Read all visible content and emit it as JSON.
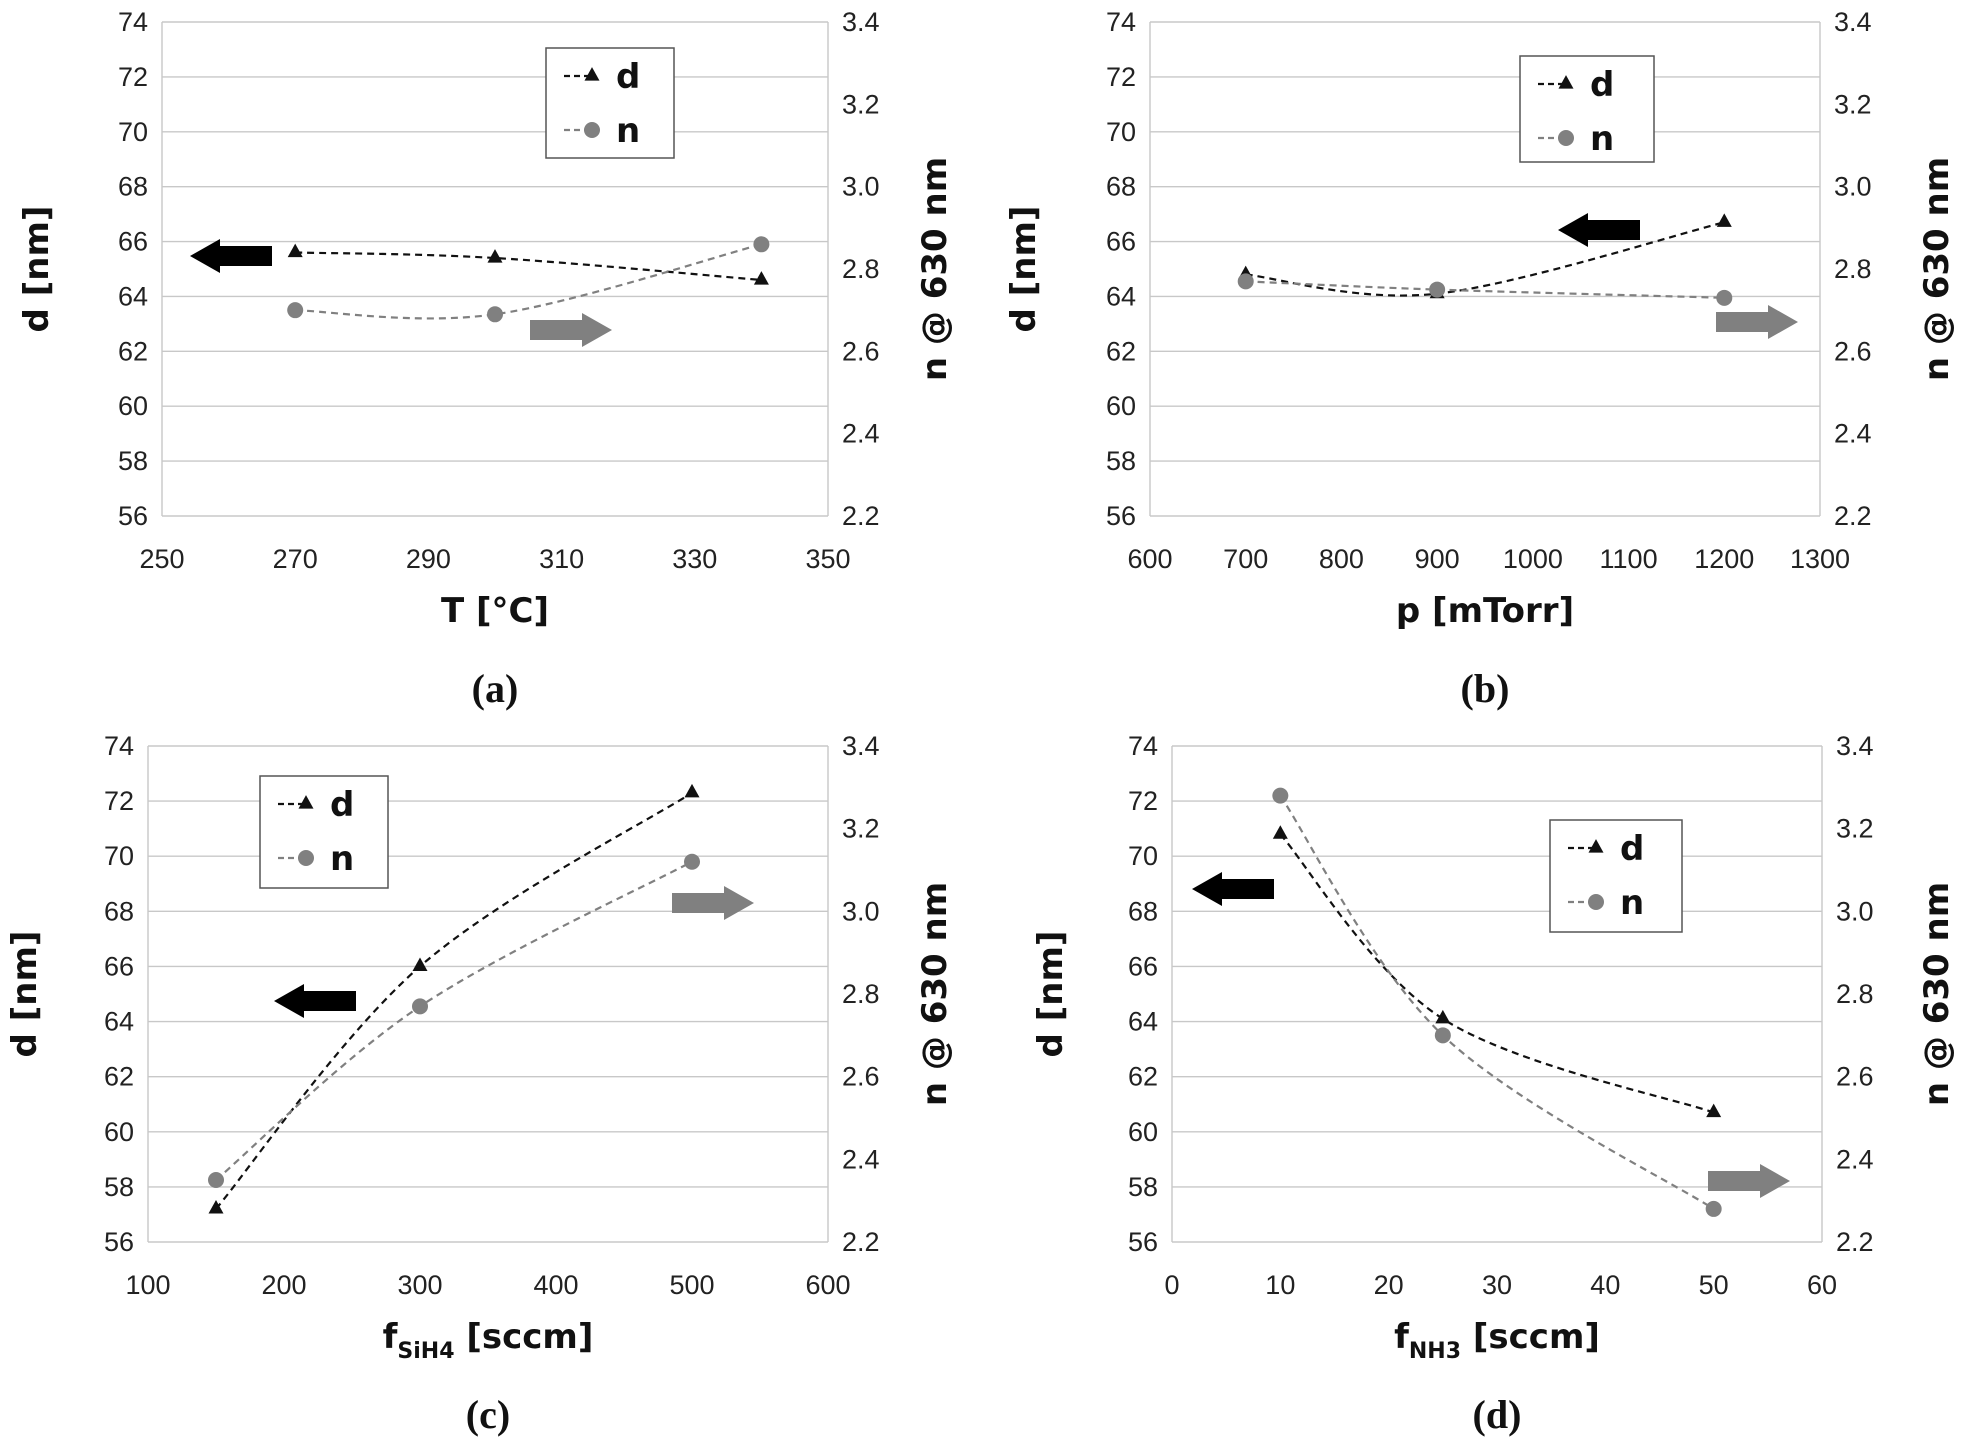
{
  "chart_data": [
    {
      "type": "line",
      "panel_label": "(a)",
      "xlabel": "T [°C]",
      "xlabel_main": "T [°C]",
      "xlabel_sub": "",
      "xlabel_tail": "",
      "ylabel": "d [nm]",
      "y2label": "n @ 630 nm",
      "xlim": [
        250,
        350
      ],
      "xticks": [
        "250",
        "270",
        "290",
        "310",
        "330",
        "350"
      ],
      "ylim": [
        56,
        74
      ],
      "yticks": [
        "56",
        "58",
        "60",
        "62",
        "64",
        "66",
        "68",
        "70",
        "72",
        "74"
      ],
      "y2lim": [
        2.2,
        3.4
      ],
      "y2ticks": [
        "2.2",
        "2.4",
        "2.6",
        "2.8",
        "3.0",
        "3.2",
        "3.4"
      ],
      "grid": true,
      "legend_position": "top-center",
      "arrow_d": "pointing left, toward left axis",
      "arrow_n": "pointing right, toward right axis",
      "series": [
        {
          "name": "d",
          "axis": "left",
          "marker": "triangle",
          "color": "#111111",
          "x": [
            270,
            300,
            340
          ],
          "values": [
            65.6,
            65.4,
            64.6
          ]
        },
        {
          "name": "n",
          "axis": "right",
          "marker": "circle",
          "color": "#808080",
          "x": [
            270,
            300,
            340
          ],
          "values": [
            2.7,
            2.69,
            2.86
          ]
        }
      ]
    },
    {
      "type": "line",
      "panel_label": "(b)",
      "xlabel": "p [mTorr]",
      "xlabel_main": "p [mTorr]",
      "xlabel_sub": "",
      "xlabel_tail": "",
      "ylabel": "d [nm]",
      "y2label": "n @ 630 nm",
      "xlim": [
        600,
        1300
      ],
      "xticks": [
        "600",
        "700",
        "800",
        "900",
        "1000",
        "1100",
        "1200",
        "1300"
      ],
      "ylim": [
        56,
        74
      ],
      "yticks": [
        "56",
        "58",
        "60",
        "62",
        "64",
        "66",
        "68",
        "70",
        "72",
        "74"
      ],
      "y2lim": [
        2.2,
        3.4
      ],
      "y2ticks": [
        "2.2",
        "2.4",
        "2.6",
        "2.8",
        "3.0",
        "3.2",
        "3.4"
      ],
      "grid": true,
      "legend_position": "top-center",
      "arrow_d": "pointing left, toward left axis",
      "arrow_n": "pointing right, toward right axis",
      "series": [
        {
          "name": "d",
          "axis": "left",
          "marker": "triangle",
          "color": "#111111",
          "x": [
            700,
            900,
            1200
          ],
          "values": [
            64.8,
            64.1,
            66.7
          ]
        },
        {
          "name": "n",
          "axis": "right",
          "marker": "circle",
          "color": "#808080",
          "x": [
            700,
            900,
            1200
          ],
          "values": [
            2.77,
            2.75,
            2.73
          ]
        }
      ]
    },
    {
      "type": "line",
      "panel_label": "(c)",
      "xlabel": "fSiH4 [sccm]",
      "xlabel_main": "f",
      "xlabel_sub": "SiH4",
      "xlabel_tail": " [sccm]",
      "ylabel": "d [nm]",
      "y2label": "n @ 630 nm",
      "xlim": [
        100,
        600
      ],
      "xticks": [
        "100",
        "200",
        "300",
        "400",
        "500",
        "600"
      ],
      "ylim": [
        56,
        74
      ],
      "yticks": [
        "56",
        "58",
        "60",
        "62",
        "64",
        "66",
        "68",
        "70",
        "72",
        "74"
      ],
      "y2lim": [
        2.2,
        3.4
      ],
      "y2ticks": [
        "2.2",
        "2.4",
        "2.6",
        "2.8",
        "3.0",
        "3.2",
        "3.4"
      ],
      "grid": true,
      "legend_position": "top-left",
      "arrow_d": "pointing left, toward left axis",
      "arrow_n": "pointing right, toward right axis",
      "series": [
        {
          "name": "d",
          "axis": "left",
          "marker": "triangle",
          "color": "#111111",
          "x": [
            150,
            300,
            500
          ],
          "values": [
            57.2,
            66.0,
            72.3
          ]
        },
        {
          "name": "n",
          "axis": "right",
          "marker": "circle",
          "color": "#808080",
          "x": [
            150,
            300,
            500
          ],
          "values": [
            2.35,
            2.77,
            3.12
          ]
        }
      ]
    },
    {
      "type": "line",
      "panel_label": "(d)",
      "xlabel": "fNH3 [sccm]",
      "xlabel_main": "f",
      "xlabel_sub": "NH3",
      "xlabel_tail": " [sccm]",
      "ylabel": "d [nm]",
      "y2label": "n @ 630 nm",
      "xlim": [
        0,
        60
      ],
      "xticks": [
        "0",
        "10",
        "20",
        "30",
        "40",
        "50",
        "60"
      ],
      "ylim": [
        56,
        74
      ],
      "yticks": [
        "56",
        "58",
        "60",
        "62",
        "64",
        "66",
        "68",
        "70",
        "72",
        "74"
      ],
      "y2lim": [
        2.2,
        3.4
      ],
      "y2ticks": [
        "2.2",
        "2.4",
        "2.6",
        "2.8",
        "3.0",
        "3.2",
        "3.4"
      ],
      "grid": true,
      "legend_position": "top-right",
      "arrow_d": "pointing left, toward left axis",
      "arrow_n": "pointing right, toward right axis",
      "series": [
        {
          "name": "d",
          "axis": "left",
          "marker": "triangle",
          "color": "#111111",
          "x": [
            10,
            25,
            50
          ],
          "values": [
            70.8,
            64.1,
            60.7
          ]
        },
        {
          "name": "n",
          "axis": "right",
          "marker": "circle",
          "color": "#808080",
          "x": [
            10,
            25,
            50
          ],
          "values": [
            3.28,
            2.7,
            2.28
          ]
        }
      ]
    }
  ]
}
